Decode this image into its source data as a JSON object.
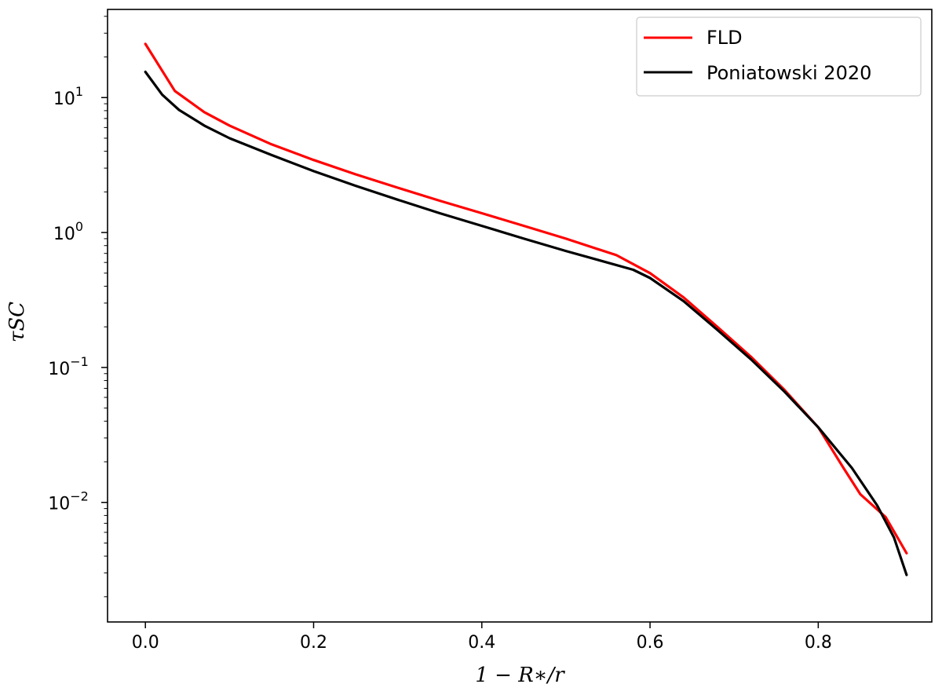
{
  "chart_data": {
    "type": "line",
    "xlabel": "1 − R∗/r",
    "ylabel": "τSC",
    "xlim": [
      -0.045,
      0.935
    ],
    "ylim": [
      0.0013,
      45
    ],
    "yscale": "log",
    "grid": false,
    "legend_position": "top-right",
    "x_ticks": [
      {
        "value": 0.0,
        "label": "0.0"
      },
      {
        "value": 0.2,
        "label": "0.2"
      },
      {
        "value": 0.4,
        "label": "0.4"
      },
      {
        "value": 0.6,
        "label": "0.6"
      },
      {
        "value": 0.8,
        "label": "0.8"
      }
    ],
    "y_ticks": [
      {
        "value": 10,
        "base": "10",
        "exp": "1"
      },
      {
        "value": 1,
        "base": "10",
        "exp": "0"
      },
      {
        "value": 0.1,
        "base": "10",
        "exp": "−1"
      },
      {
        "value": 0.01,
        "base": "10",
        "exp": "−2"
      }
    ],
    "series": [
      {
        "name": "FLD",
        "color": "#ff0000",
        "x": [
          0.0,
          0.035,
          0.07,
          0.1,
          0.15,
          0.2,
          0.25,
          0.3,
          0.35,
          0.4,
          0.45,
          0.5,
          0.56,
          0.6,
          0.64,
          0.68,
          0.72,
          0.76,
          0.8,
          0.83,
          0.85,
          0.88,
          0.905
        ],
        "y": [
          25,
          11.2,
          7.8,
          6.2,
          4.5,
          3.45,
          2.7,
          2.15,
          1.72,
          1.39,
          1.12,
          0.9,
          0.68,
          0.5,
          0.33,
          0.2,
          0.12,
          0.068,
          0.036,
          0.018,
          0.0115,
          0.0078,
          0.0042
        ]
      },
      {
        "name": "Poniatowski 2020",
        "color": "#000000",
        "x": [
          0.0,
          0.02,
          0.04,
          0.07,
          0.1,
          0.15,
          0.2,
          0.25,
          0.3,
          0.35,
          0.4,
          0.45,
          0.5,
          0.58,
          0.6,
          0.64,
          0.68,
          0.72,
          0.76,
          0.8,
          0.84,
          0.87,
          0.89,
          0.905
        ],
        "y": [
          15.5,
          10.5,
          8.1,
          6.2,
          5.0,
          3.75,
          2.85,
          2.22,
          1.75,
          1.39,
          1.12,
          0.9,
          0.73,
          0.53,
          0.46,
          0.31,
          0.19,
          0.115,
          0.066,
          0.036,
          0.018,
          0.0095,
          0.0055,
          0.0029
        ]
      }
    ]
  }
}
